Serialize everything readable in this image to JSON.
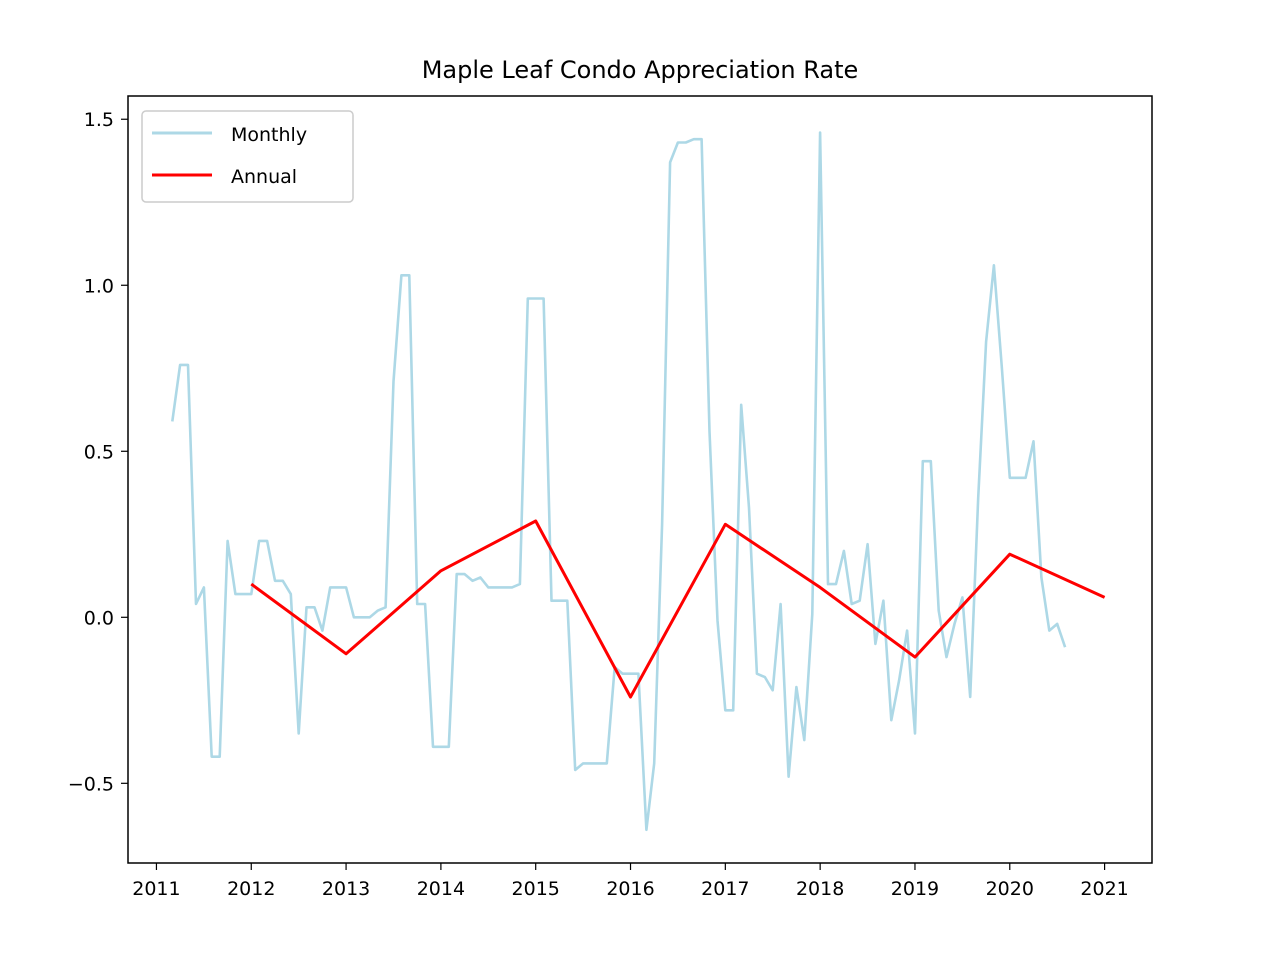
{
  "chart_data": {
    "type": "line",
    "title": "Maple Leaf Condo Appreciation Rate",
    "xlabel": "",
    "ylabel": "",
    "xlim": [
      2010.7,
      2021.5
    ],
    "ylim": [
      -0.74,
      1.57
    ],
    "x_ticks": [
      2011,
      2012,
      2013,
      2014,
      2015,
      2016,
      2017,
      2018,
      2019,
      2020,
      2021
    ],
    "x_tick_labels": [
      "2011",
      "2012",
      "2013",
      "2014",
      "2015",
      "2016",
      "2017",
      "2018",
      "2019",
      "2020",
      "2021"
    ],
    "y_ticks": [
      -0.5,
      0.0,
      0.5,
      1.0,
      1.5
    ],
    "y_tick_labels": [
      "−0.5",
      "0.0",
      "0.5",
      "1.0",
      "1.5"
    ],
    "grid": false,
    "legend_position": "top-left",
    "series": [
      {
        "name": "Monthly",
        "color": "#add8e6",
        "x": [
          2011.167,
          2011.25,
          2011.333,
          2011.417,
          2011.5,
          2011.583,
          2011.667,
          2011.75,
          2011.833,
          2011.917,
          2012.0,
          2012.083,
          2012.167,
          2012.25,
          2012.333,
          2012.417,
          2012.5,
          2012.583,
          2012.667,
          2012.75,
          2012.833,
          2012.917,
          2013.0,
          2013.083,
          2013.167,
          2013.25,
          2013.333,
          2013.417,
          2013.5,
          2013.583,
          2013.667,
          2013.75,
          2013.833,
          2013.917,
          2014.0,
          2014.083,
          2014.167,
          2014.25,
          2014.333,
          2014.417,
          2014.5,
          2014.583,
          2014.667,
          2014.75,
          2014.833,
          2014.917,
          2015.0,
          2015.083,
          2015.167,
          2015.25,
          2015.333,
          2015.417,
          2015.5,
          2015.583,
          2015.667,
          2015.75,
          2015.833,
          2015.917,
          2016.0,
          2016.083,
          2016.167,
          2016.25,
          2016.333,
          2016.417,
          2016.5,
          2016.583,
          2016.667,
          2016.75,
          2016.833,
          2016.917,
          2017.0,
          2017.083,
          2017.167,
          2017.25,
          2017.333,
          2017.417,
          2017.5,
          2017.583,
          2017.667,
          2017.75,
          2017.833,
          2017.917,
          2018.0,
          2018.083,
          2018.167,
          2018.25,
          2018.333,
          2018.417,
          2018.5,
          2018.583,
          2018.667,
          2018.75,
          2018.833,
          2018.917,
          2019.0,
          2019.083,
          2019.167,
          2019.25,
          2019.333,
          2019.417,
          2019.5,
          2019.583,
          2019.667,
          2019.75,
          2019.833,
          2019.917,
          2020.0,
          2020.083,
          2020.167,
          2020.25,
          2020.333,
          2020.417,
          2020.5,
          2020.583
        ],
        "values": [
          0.59,
          0.76,
          0.76,
          0.04,
          0.09,
          -0.42,
          -0.42,
          0.23,
          0.07,
          0.07,
          0.07,
          0.23,
          0.23,
          0.11,
          0.11,
          0.07,
          -0.35,
          0.03,
          0.03,
          -0.04,
          0.09,
          0.09,
          0.09,
          0.0,
          0.0,
          0.0,
          0.02,
          0.03,
          0.71,
          1.03,
          1.03,
          0.04,
          0.04,
          -0.39,
          -0.39,
          -0.39,
          0.13,
          0.13,
          0.11,
          0.12,
          0.09,
          0.09,
          0.09,
          0.09,
          0.1,
          0.96,
          0.96,
          0.96,
          0.05,
          0.05,
          0.05,
          -0.46,
          -0.44,
          -0.44,
          -0.44,
          -0.44,
          -0.15,
          -0.17,
          -0.17,
          -0.17,
          -0.64,
          -0.44,
          0.28,
          1.37,
          1.43,
          1.43,
          1.44,
          1.44,
          0.56,
          -0.01,
          -0.28,
          -0.28,
          0.64,
          0.33,
          -0.17,
          -0.18,
          -0.22,
          0.04,
          -0.48,
          -0.21,
          -0.37,
          0.01,
          1.46,
          0.1,
          0.1,
          0.2,
          0.04,
          0.05,
          0.22,
          -0.08,
          0.05,
          -0.31,
          -0.19,
          -0.04,
          -0.35,
          0.47,
          0.47,
          0.02,
          -0.12,
          -0.02,
          0.06,
          -0.24,
          0.36,
          0.83,
          1.06,
          0.75,
          0.42,
          0.42,
          0.42,
          0.53,
          0.12,
          -0.04,
          -0.02,
          -0.09
        ]
      },
      {
        "name": "Annual",
        "color": "#ff0000",
        "x": [
          2012,
          2013,
          2014,
          2015,
          2016,
          2017,
          2018,
          2019,
          2020,
          2021
        ],
        "values": [
          0.1,
          -0.11,
          0.14,
          0.29,
          -0.24,
          0.28,
          0.09,
          -0.12,
          0.19,
          0.06
        ]
      }
    ]
  }
}
